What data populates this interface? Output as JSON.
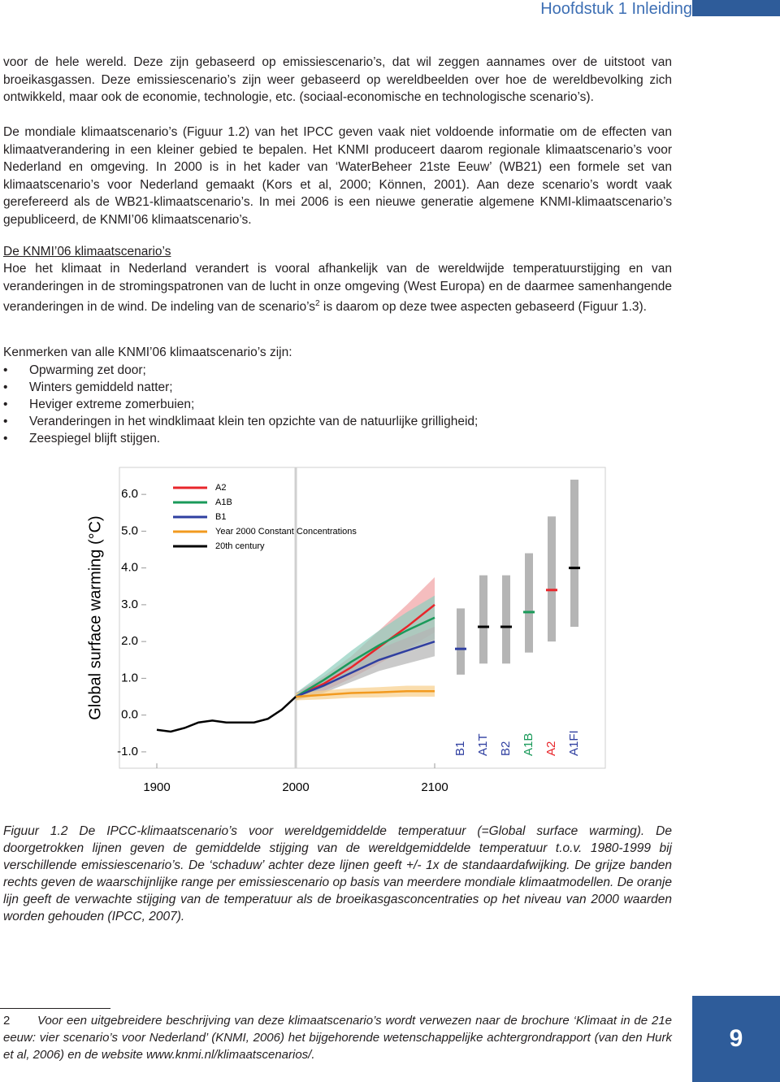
{
  "header": {
    "title": "Hoofdstuk 1  Inleiding"
  },
  "paragraphs": [
    "voor de hele wereld. Deze zijn gebaseerd op emissiescenario’s, dat wil zeggen aannames over de uitstoot van broeikasgassen. Deze emissiescenario’s zijn weer gebaseerd op wereldbeelden over hoe de wereldbevolking zich ontwikkeld, maar ook de economie, technologie, etc. (sociaal-economische en technologische scenario’s).",
    "De mondiale klimaatscenario’s (Figuur 1.2) van het IPCC geven vaak niet voldoende informatie om de effecten van klimaatverandering in een kleiner gebied te bepalen. Het KNMI produceert daarom regionale klimaatscenario’s voor Nederland en omgeving. In 2000 is in het kader van ‘WaterBeheer 21ste Eeuw’ (WB21) een formele set van klimaatscenario’s voor Nederland gemaakt (Kors et al, 2000; Können, 2001). Aan deze scenario’s wordt vaak gerefereerd als de WB21-klimaatscenario’s. In mei 2006 is een nieuwe generatie algemene KNMI-klimaatscenario’s gepubliceerd, de KNMI’06 klimaatscenario’s."
  ],
  "section": {
    "heading": "De KNMI’06 klimaatscenario’s",
    "body": [
      "Hoe het klimaat in Nederland verandert is vooral afhankelijk van de wereldwijde temperatuurstijging en van veranderingen in de stromingspatronen van de lucht in onze omgeving (West Europa) en de daarmee samenhangende veranderingen in de wind. De indeling van de scenario’s",
      "2",
      " is daarom op deze twee aspecten gebaseerd (Figuur 1.3)."
    ]
  },
  "list": {
    "intro": "Kenmerken van alle KNMI’06 klimaatscenario’s zijn:",
    "items": [
      "Opwarming zet door;",
      "Winters gemiddeld natter;",
      "Heviger extreme zomerbuien;",
      "Veranderingen in het windklimaat klein ten opzichte van de natuurlijke grilligheid;",
      "Zeespiegel blijft stijgen."
    ]
  },
  "figure": {
    "chart_data": {
      "type": "line",
      "y_label": "Global surface warming (°C)",
      "xlim": [
        1900,
        2100
      ],
      "xticks": [
        1900,
        2000,
        2100
      ],
      "ylim": [
        -1.4,
        6.6
      ],
      "yticks": [
        {
          "value": -1,
          "label": "-1.0"
        },
        {
          "value": 0,
          "label": "0.0"
        },
        {
          "value": 1,
          "label": "1.0"
        },
        {
          "value": 2,
          "label": "2.0"
        },
        {
          "value": 3,
          "label": "3.0"
        },
        {
          "value": 4,
          "label": "4.0"
        },
        {
          "value": 5,
          "label": "5.0"
        },
        {
          "value": 6,
          "label": "6.0"
        }
      ],
      "series": [
        {
          "name": "A2",
          "color": "#e8262b",
          "band_color": "#f1a1a3",
          "x": [
            2000,
            2020,
            2040,
            2060,
            2080,
            2100
          ],
          "values": [
            0.5,
            0.85,
            1.3,
            1.85,
            2.4,
            3.0
          ],
          "errors": [
            0.1,
            0.2,
            0.3,
            0.45,
            0.6,
            0.75
          ]
        },
        {
          "name": "A1B",
          "color": "#1a9a5a",
          "band_color": "#8fcfbd",
          "x": [
            2000,
            2020,
            2040,
            2060,
            2080,
            2100
          ],
          "values": [
            0.5,
            0.95,
            1.45,
            1.9,
            2.3,
            2.65
          ],
          "errors": [
            0.1,
            0.2,
            0.3,
            0.4,
            0.5,
            0.6
          ]
        },
        {
          "name": "B1",
          "color": "#2f3fa0",
          "band_color": "#b3b3b3",
          "x": [
            2000,
            2020,
            2040,
            2060,
            2080,
            2100
          ],
          "values": [
            0.5,
            0.8,
            1.15,
            1.5,
            1.75,
            2.0
          ],
          "errors": [
            0.1,
            0.2,
            0.25,
            0.3,
            0.35,
            0.4
          ]
        },
        {
          "name": "Year 2000 Constant Concentrations",
          "color": "#f29a1f",
          "band_color": "#f8cf8a",
          "x": [
            2000,
            2020,
            2040,
            2060,
            2080,
            2100
          ],
          "values": [
            0.5,
            0.55,
            0.6,
            0.62,
            0.65,
            0.65
          ],
          "errors": [
            0.1,
            0.12,
            0.13,
            0.14,
            0.15,
            0.15
          ]
        },
        {
          "name": "20th century",
          "color": "#000000",
          "x": [
            1900,
            1910,
            1920,
            1930,
            1940,
            1950,
            1960,
            1970,
            1980,
            1990,
            2000
          ],
          "values": [
            -0.4,
            -0.45,
            -0.35,
            -0.2,
            -0.15,
            -0.2,
            -0.2,
            -0.2,
            -0.1,
            0.15,
            0.5
          ]
        }
      ],
      "ranges": {
        "categories": [
          "B1",
          "A1T",
          "B2",
          "A1B",
          "A2",
          "A1FI"
        ],
        "low": [
          1.1,
          1.4,
          1.4,
          1.7,
          2.0,
          2.4
        ],
        "high": [
          2.9,
          3.8,
          3.8,
          4.4,
          5.4,
          6.4
        ],
        "best": [
          1.8,
          2.4,
          2.4,
          2.8,
          3.4,
          4.0
        ],
        "colors": [
          "#2f3fa0",
          "#000000",
          "#000000",
          "#1a9a5a",
          "#e8262b",
          "#000000"
        ],
        "bar_color": "#b5b5b5"
      }
    },
    "caption": "Figuur 1.2 De IPCC-klimaatscenario’s voor wereldgemiddelde temperatuur (=Global surface warming). De doorgetrokken lijnen geven de gemiddelde stijging van de wereldgemiddelde temperatuur t.o.v. 1980-1999 bij verschillende emissiescenario’s. De ‘schaduw’ achter deze lijnen geeft +/- 1x de standaardafwijking. De grijze banden rechts geven de waarschijnlijke range per emissiescenario op basis van meerdere mondiale klimaatmodellen. De oranje lijn geeft de verwachte stijging van de temperatuur als de broeikasgasconcentraties op het niveau van 2000 waarden worden gehouden (IPCC, 2007)."
  },
  "footnote": {
    "number": "2",
    "text": "Voor een uitgebreidere beschrijving van deze klimaatscenario’s wordt verwezen naar de brochure ‘Klimaat in de 21e eeuw: vier scenario’s voor Nederland’ (KNMI, 2006) het bijgehorende wetenschappelijke achtergrondrapport (van den Hurk et al, 2006) en de website www.knmi.nl/klimaatscenarios/."
  },
  "page_number": "9"
}
